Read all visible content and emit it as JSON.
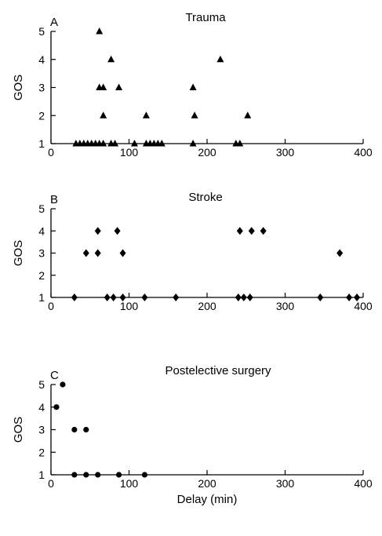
{
  "chart_data": [
    {
      "panel": "A",
      "type": "scatter",
      "title": "Trauma",
      "marker": "triangle",
      "xlabel": "",
      "ylabel": "GOS",
      "xlim": [
        0,
        400
      ],
      "ylim": [
        1,
        5
      ],
      "xticks": [
        "0",
        "100",
        "200",
        "300",
        "400"
      ],
      "yticks": [
        "1",
        "2",
        "3",
        "4",
        "5"
      ],
      "grid": false,
      "points": [
        {
          "x": 32,
          "y": 1
        },
        {
          "x": 37,
          "y": 1
        },
        {
          "x": 42,
          "y": 1
        },
        {
          "x": 47,
          "y": 1
        },
        {
          "x": 52,
          "y": 1
        },
        {
          "x": 57,
          "y": 1
        },
        {
          "x": 62,
          "y": 1
        },
        {
          "x": 67,
          "y": 1
        },
        {
          "x": 77,
          "y": 1
        },
        {
          "x": 82,
          "y": 1
        },
        {
          "x": 107,
          "y": 1
        },
        {
          "x": 122,
          "y": 1
        },
        {
          "x": 127,
          "y": 1
        },
        {
          "x": 132,
          "y": 1
        },
        {
          "x": 137,
          "y": 1
        },
        {
          "x": 142,
          "y": 1
        },
        {
          "x": 182,
          "y": 1
        },
        {
          "x": 237,
          "y": 1
        },
        {
          "x": 242,
          "y": 1
        },
        {
          "x": 67,
          "y": 2
        },
        {
          "x": 122,
          "y": 2
        },
        {
          "x": 184,
          "y": 2
        },
        {
          "x": 252,
          "y": 2
        },
        {
          "x": 62,
          "y": 3
        },
        {
          "x": 67,
          "y": 3
        },
        {
          "x": 87,
          "y": 3
        },
        {
          "x": 182,
          "y": 3
        },
        {
          "x": 77,
          "y": 4
        },
        {
          "x": 217,
          "y": 4
        },
        {
          "x": 62,
          "y": 5
        }
      ]
    },
    {
      "panel": "B",
      "type": "scatter",
      "title": "Stroke",
      "marker": "diamond",
      "xlabel": "",
      "ylabel": "GOS",
      "xlim": [
        0,
        400
      ],
      "ylim": [
        1,
        5
      ],
      "xticks": [
        "0",
        "100",
        "200",
        "300",
        "400"
      ],
      "yticks": [
        "1",
        "2",
        "3",
        "4",
        "5"
      ],
      "grid": false,
      "points": [
        {
          "x": 30,
          "y": 1
        },
        {
          "x": 72,
          "y": 1
        },
        {
          "x": 80,
          "y": 1
        },
        {
          "x": 92,
          "y": 1
        },
        {
          "x": 120,
          "y": 1
        },
        {
          "x": 160,
          "y": 1
        },
        {
          "x": 240,
          "y": 1
        },
        {
          "x": 247,
          "y": 1
        },
        {
          "x": 255,
          "y": 1
        },
        {
          "x": 345,
          "y": 1
        },
        {
          "x": 382,
          "y": 1
        },
        {
          "x": 392,
          "y": 1
        },
        {
          "x": 45,
          "y": 3
        },
        {
          "x": 60,
          "y": 3
        },
        {
          "x": 92,
          "y": 3
        },
        {
          "x": 370,
          "y": 3
        },
        {
          "x": 60,
          "y": 4
        },
        {
          "x": 85,
          "y": 4
        },
        {
          "x": 242,
          "y": 4
        },
        {
          "x": 257,
          "y": 4
        },
        {
          "x": 272,
          "y": 4
        }
      ]
    },
    {
      "panel": "C",
      "type": "scatter",
      "title": "Postelective surgery",
      "marker": "circle",
      "xlabel": "Delay (min)",
      "ylabel": "GOS",
      "xlim": [
        0,
        400
      ],
      "ylim": [
        1,
        5
      ],
      "xticks": [
        "0",
        "100",
        "200",
        "300",
        "400"
      ],
      "yticks": [
        "1",
        "2",
        "3",
        "4",
        "5"
      ],
      "grid": false,
      "points": [
        {
          "x": 30,
          "y": 1
        },
        {
          "x": 45,
          "y": 1
        },
        {
          "x": 60,
          "y": 1
        },
        {
          "x": 87,
          "y": 1
        },
        {
          "x": 120,
          "y": 1
        },
        {
          "x": 30,
          "y": 3
        },
        {
          "x": 45,
          "y": 3
        },
        {
          "x": 7,
          "y": 4
        },
        {
          "x": 15,
          "y": 5
        }
      ]
    }
  ]
}
